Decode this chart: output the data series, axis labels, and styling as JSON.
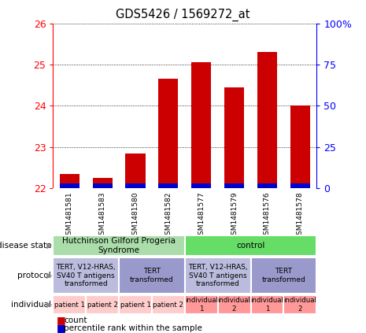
{
  "title": "GDS5426 / 1569272_at",
  "samples": [
    "GSM1481581",
    "GSM1481583",
    "GSM1481580",
    "GSM1481582",
    "GSM1481577",
    "GSM1481579",
    "GSM1481576",
    "GSM1481578"
  ],
  "count_values": [
    22.35,
    22.25,
    22.85,
    24.65,
    25.05,
    24.45,
    25.3,
    24.0
  ],
  "percentile_values": [
    0.05,
    0.04,
    0.05,
    0.05,
    0.06,
    0.06,
    0.06,
    0.05
  ],
  "ymin": 22,
  "ymax": 26,
  "yticks": [
    22,
    23,
    24,
    25,
    26
  ],
  "right_yticks": [
    0,
    25,
    50,
    75,
    100
  ],
  "right_yticklabels": [
    "0",
    "25",
    "50",
    "75",
    "100%"
  ],
  "bar_color": "#cc0000",
  "percentile_color": "#0000cc",
  "bar_width": 0.6,
  "disease_state": [
    {
      "label": "Hutchinson Gilford Progeria\nSyndrome",
      "span": [
        0,
        4
      ],
      "color": "#aaddaa"
    },
    {
      "label": "control",
      "span": [
        4,
        8
      ],
      "color": "#66dd66"
    }
  ],
  "protocol": [
    {
      "label": "TERT, V12-HRAS,\nSV40 T antigens\ntransformed",
      "span": [
        0,
        2
      ],
      "color": "#bbbbdd"
    },
    {
      "label": "TERT\ntransformed",
      "span": [
        2,
        4
      ],
      "color": "#9999cc"
    },
    {
      "label": "TERT, V12-HRAS,\nSV40 T antigens\ntransformed",
      "span": [
        4,
        6
      ],
      "color": "#bbbbdd"
    },
    {
      "label": "TERT\ntransformed",
      "span": [
        6,
        8
      ],
      "color": "#9999cc"
    }
  ],
  "individual": [
    {
      "label": "patient 1",
      "span": [
        0,
        1
      ],
      "color": "#ffcccc"
    },
    {
      "label": "patient 2",
      "span": [
        1,
        2
      ],
      "color": "#ffcccc"
    },
    {
      "label": "patient 1",
      "span": [
        2,
        3
      ],
      "color": "#ffcccc"
    },
    {
      "label": "patient 2",
      "span": [
        3,
        4
      ],
      "color": "#ffcccc"
    },
    {
      "label": "individual\n1",
      "span": [
        4,
        5
      ],
      "color": "#ff9999"
    },
    {
      "label": "individual\n2",
      "span": [
        5,
        6
      ],
      "color": "#ff9999"
    },
    {
      "label": "individual\n1",
      "span": [
        6,
        7
      ],
      "color": "#ff9999"
    },
    {
      "label": "individual\n2",
      "span": [
        7,
        8
      ],
      "color": "#ff9999"
    }
  ],
  "row_labels": [
    "disease state",
    "protocol",
    "individual"
  ],
  "bg_color": "#e0e0e0"
}
